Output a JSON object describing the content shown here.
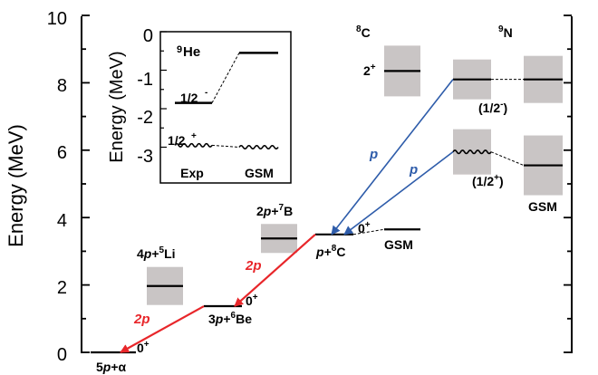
{
  "main_axis": {
    "ylabel": "Energy (MeV)",
    "ticks": [
      "0",
      "2",
      "4",
      "6",
      "8",
      "10"
    ],
    "ylim": [
      0,
      10
    ]
  },
  "inset": {
    "ylabel": "Energy (MeV)",
    "ticks": [
      "0",
      "-1",
      "-2",
      "-3"
    ],
    "ylim": [
      -3.4,
      0
    ],
    "nucleus_mass": "9",
    "nucleus_sym": "He",
    "exp_label": "Exp",
    "gsm_label": "GSM",
    "state_half_minus": "1/2",
    "state_half_minus_sup": "-",
    "state_half_plus": "1/2",
    "state_half_plus_sup": "+",
    "exp_levels": {
      "half_minus": -1.85,
      "half_plus": -2.95
    },
    "gsm_levels": {
      "half_minus": -0.55,
      "half_plus": -3.0
    }
  },
  "thresholds": {
    "t_5p_alpha": {
      "energy": 0.0,
      "label_a": "5",
      "label_b": "p",
      "label_c": "+α",
      "spin": "0",
      "spin_sup": "+"
    },
    "t_3p_6be": {
      "energy": 1.37,
      "label_a": "3",
      "label_b": "p",
      "label_c": "+",
      "label_mass": "6",
      "label_sym": "Be",
      "spin": "0",
      "spin_sup": "+"
    },
    "t_p_8c": {
      "energy": 3.5,
      "label_b": "p",
      "label_c": "+",
      "label_mass": "8",
      "label_sym": "C",
      "spin": "0",
      "spin_sup": "+"
    }
  },
  "boxes": {
    "li5": {
      "energy": 1.97,
      "label_a": "4",
      "label_b": "p",
      "label_c": "+",
      "label_mass": "5",
      "label_sym": "Li"
    },
    "b7": {
      "energy": 3.38,
      "label_a": "2",
      "label_b": "p",
      "label_c": "+",
      "label_mass": "7",
      "label_sym": "B"
    },
    "c8_2plus": {
      "energy": 8.35,
      "spin": "2",
      "spin_sup": "+"
    }
  },
  "c8": {
    "mass": "8",
    "sym": "C",
    "gsm_energy": 3.65,
    "gsm_label": "GSM"
  },
  "n9": {
    "mass": "9",
    "sym": "N",
    "exp_half_minus": 8.1,
    "exp_half_plus": 5.95,
    "gsm_half_minus": 8.1,
    "gsm_half_plus": 5.55,
    "label_half_minus": "(1/2",
    "label_half_minus_sup": "-",
    "label_half_minus_close": ")",
    "label_half_plus": "(1/2",
    "label_half_plus_sup": "+",
    "label_half_plus_close": ")",
    "gsm_label": "GSM"
  },
  "decays": {
    "two_p_upper": "2p",
    "two_p_lower": "2p",
    "p_upper": "p",
    "p_lower": "p",
    "two_p_color": "#e8262a",
    "p_color": "#2e5caa"
  },
  "colors": {
    "box": "#c9c5c5",
    "arrow_red": "#e8262a",
    "arrow_blue": "#2e5caa"
  }
}
